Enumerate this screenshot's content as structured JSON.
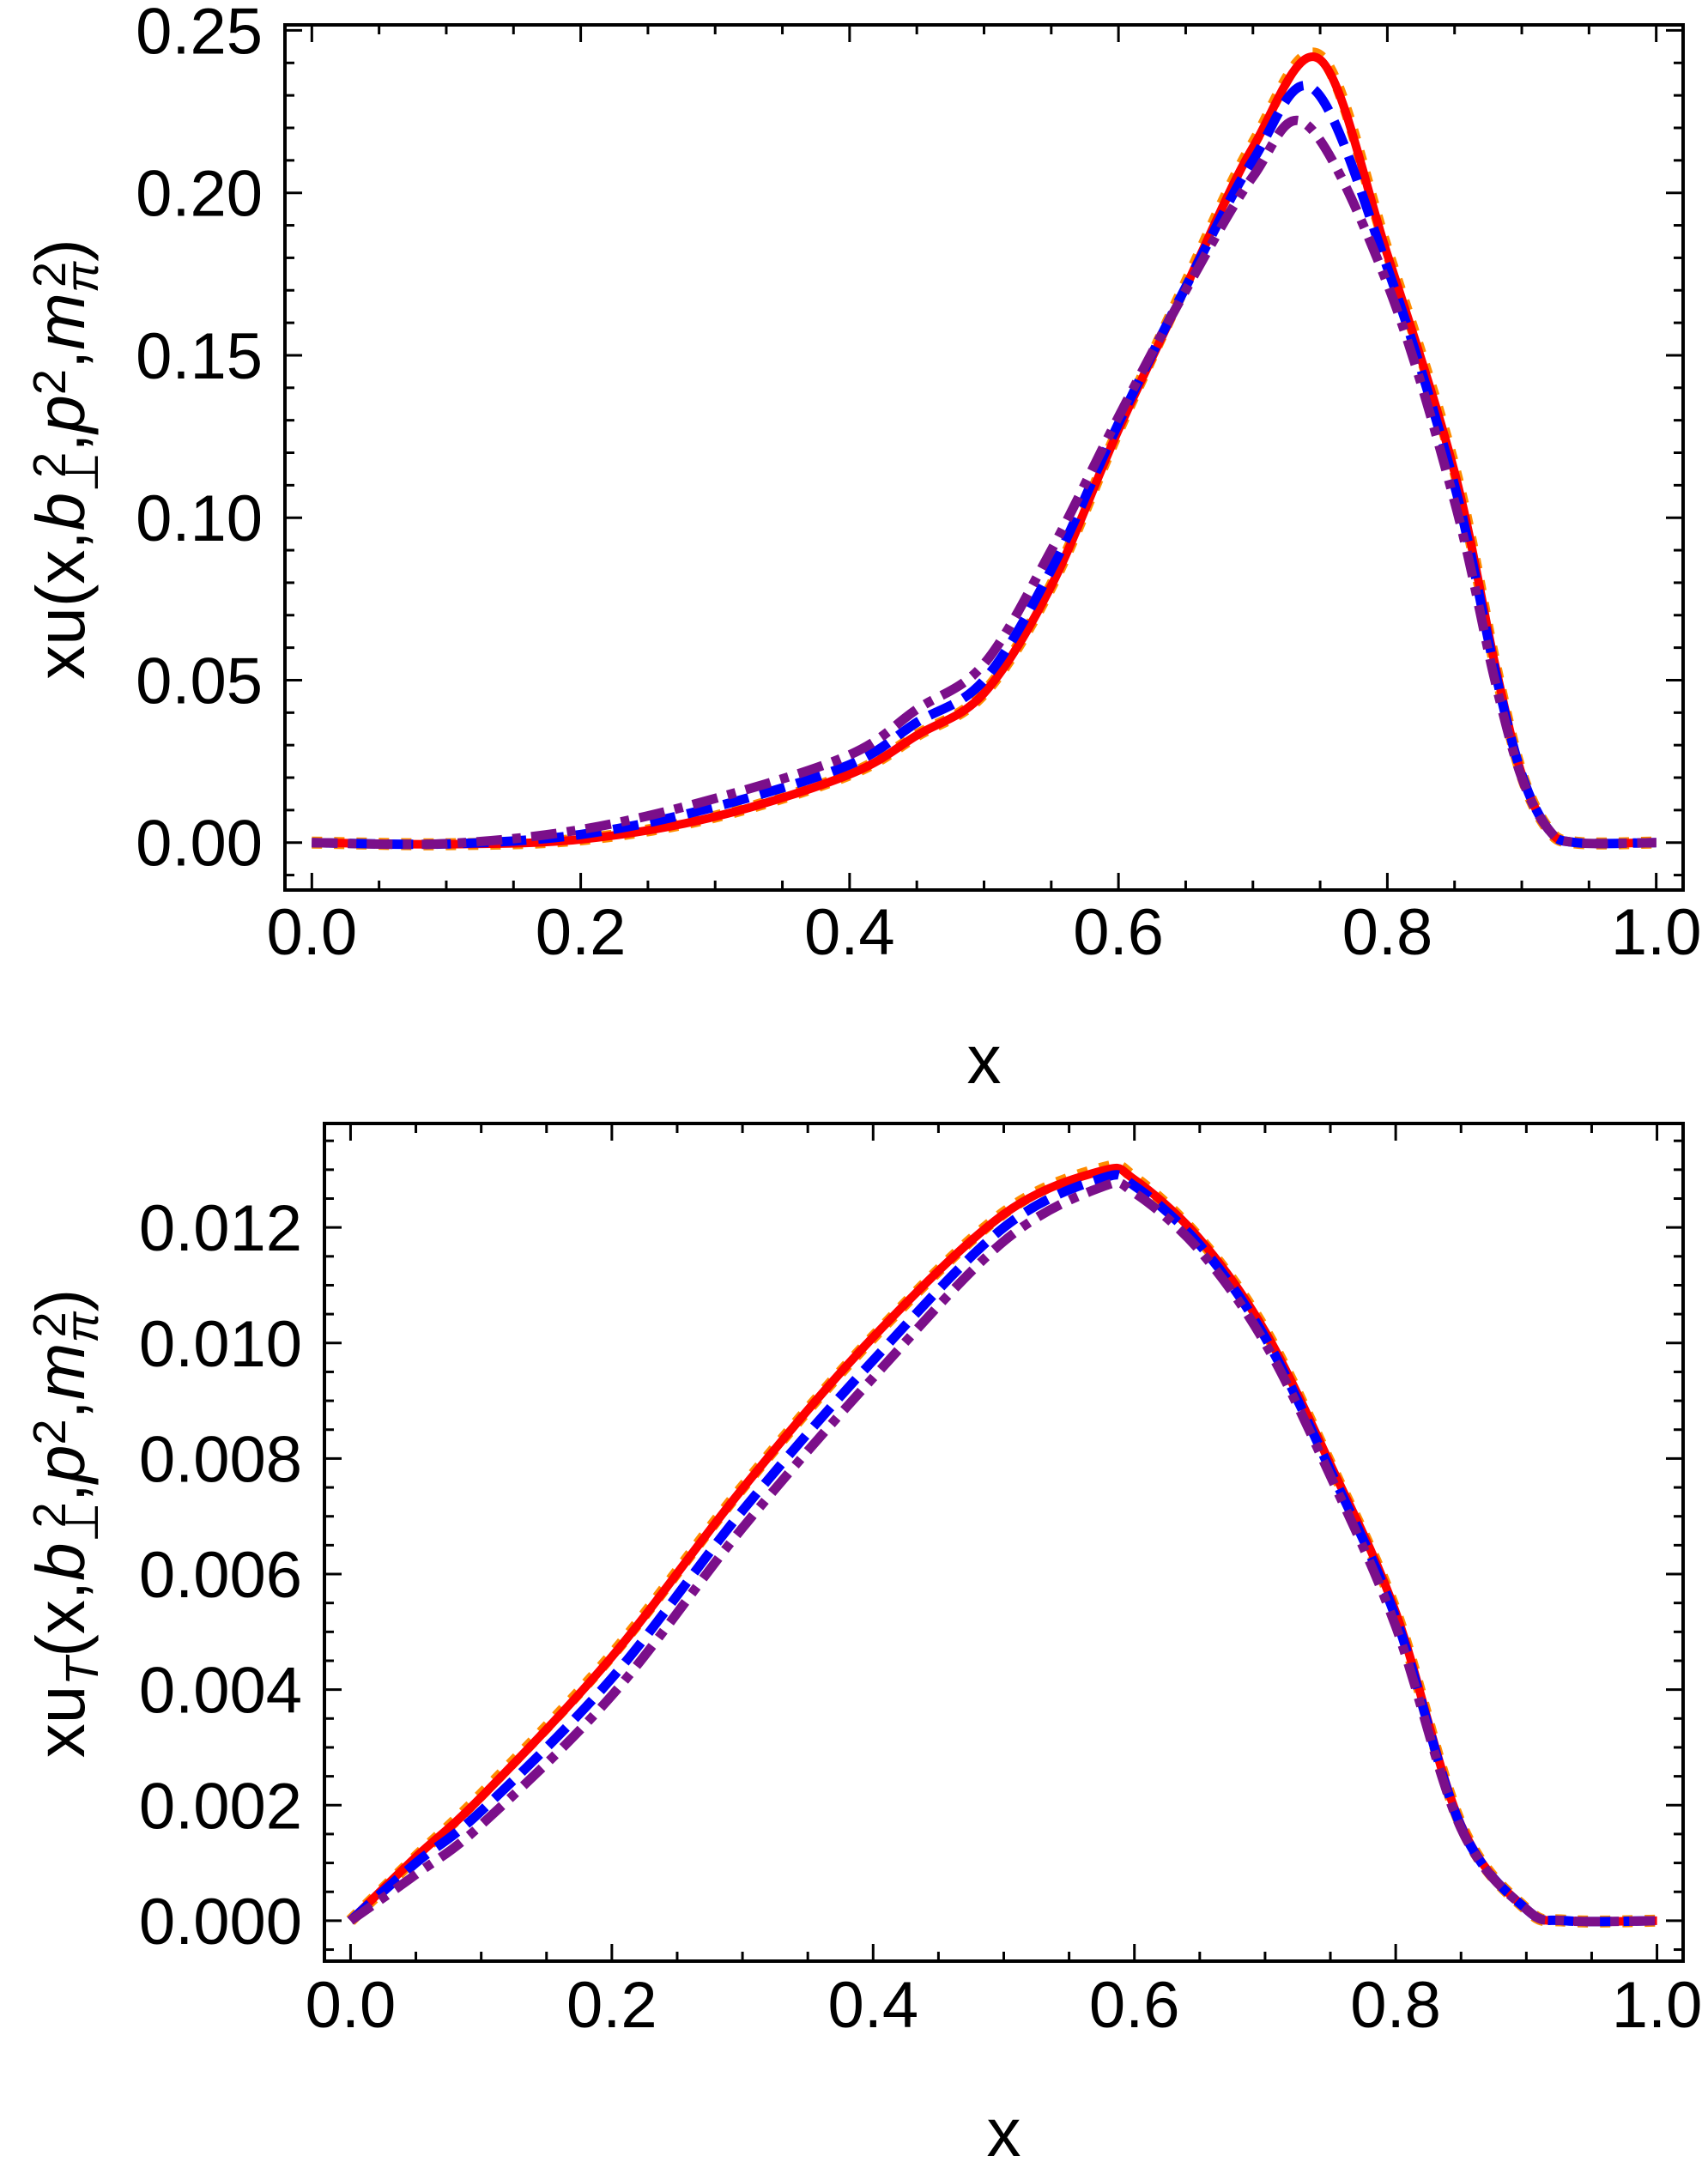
{
  "chart_data": [
    {
      "type": "line",
      "xlabel": "x",
      "ylabel_parts": [
        {
          "t": "xu(x,"
        },
        {
          "t": "b",
          "i": true
        },
        {
          "t": "⊥",
          "sub": true,
          "sup2": "2"
        },
        {
          "t": ","
        },
        {
          "t": "p",
          "i": true
        },
        {
          "t": "2",
          "sup": true
        },
        {
          "t": ","
        },
        {
          "t": "m",
          "i": true
        },
        {
          "t": "π",
          "sub": true,
          "i": true,
          "sup2": "2"
        },
        {
          "t": ")"
        }
      ],
      "xlim": [
        -0.02,
        1.02
      ],
      "ylim": [
        -0.0146,
        0.2517
      ],
      "xticks": [
        0.0,
        0.2,
        0.4,
        0.6,
        0.8,
        1.0
      ],
      "xtick_labels": [
        "0.0",
        "0.2",
        "0.4",
        "0.6",
        "0.8",
        "1.0"
      ],
      "yticks": [
        0.0,
        0.05,
        0.1,
        0.15,
        0.2,
        0.25
      ],
      "ytick_labels": [
        "0.00",
        "0.05",
        "0.10",
        "0.15",
        "0.20",
        "0.25"
      ],
      "x_minor_step": 0.05,
      "y_minor_step": 0.01,
      "grid": false,
      "series": [
        {
          "color": "#FF8C00",
          "style": "dashed-thin",
          "x": [
            0,
            0.1,
            0.2,
            0.3,
            0.4,
            0.45,
            0.5,
            0.55,
            0.6,
            0.65,
            0.7,
            0.75,
            0.8,
            0.85,
            0.88,
            0.9,
            0.92,
            0.94,
            1.0
          ],
          "y": [
            0,
            -0.0005,
            0.001,
            0.008,
            0.021,
            0.033,
            0.046,
            0.079,
            0.127,
            0.172,
            0.215,
            0.242,
            0.182,
            0.115,
            0.055,
            0.021,
            0.004,
            0,
            0
          ]
        },
        {
          "color": "#FF0000",
          "style": "solid",
          "x": [
            0,
            0.1,
            0.2,
            0.3,
            0.4,
            0.45,
            0.5,
            0.55,
            0.6,
            0.65,
            0.7,
            0.75,
            0.8,
            0.85,
            0.88,
            0.9,
            0.92,
            0.94,
            1.0
          ],
          "y": [
            0,
            -0.0005,
            0.001,
            0.008,
            0.021,
            0.033,
            0.046,
            0.079,
            0.127,
            0.171,
            0.214,
            0.241,
            0.181,
            0.114,
            0.055,
            0.021,
            0.004,
            0,
            0
          ]
        },
        {
          "color": "#0000FF",
          "style": "dashed",
          "x": [
            0,
            0.1,
            0.2,
            0.3,
            0.4,
            0.45,
            0.5,
            0.55,
            0.6,
            0.65,
            0.7,
            0.745,
            0.8,
            0.85,
            0.88,
            0.9,
            0.92,
            0.94,
            1.0
          ],
          "y": [
            0,
            -0.0004,
            0.0025,
            0.011,
            0.024,
            0.037,
            0.05,
            0.084,
            0.129,
            0.171,
            0.21,
            0.232,
            0.177,
            0.11,
            0.053,
            0.021,
            0.004,
            0,
            0
          ]
        },
        {
          "color": "#7B0F8A",
          "style": "dot-dash",
          "x": [
            0,
            0.1,
            0.2,
            0.3,
            0.4,
            0.45,
            0.5,
            0.55,
            0.6,
            0.65,
            0.7,
            0.74,
            0.8,
            0.85,
            0.88,
            0.9,
            0.92,
            0.94,
            1.0
          ],
          "y": [
            0,
            -0.0003,
            0.004,
            0.0136,
            0.027,
            0.041,
            0.055,
            0.09,
            0.131,
            0.17,
            0.205,
            0.221,
            0.172,
            0.105,
            0.05,
            0.02,
            0.004,
            0,
            0
          ]
        }
      ]
    },
    {
      "type": "line",
      "xlabel": "x",
      "ylabel_parts": [
        {
          "t": "xu"
        },
        {
          "t": "T",
          "sub": true,
          "i": true
        },
        {
          "t": "(x,"
        },
        {
          "t": "b",
          "i": true
        },
        {
          "t": "⊥",
          "sub": true,
          "sup2": "2"
        },
        {
          "t": ","
        },
        {
          "t": "p",
          "i": true
        },
        {
          "t": "2",
          "sup": true
        },
        {
          "t": ","
        },
        {
          "t": "m",
          "i": true
        },
        {
          "t": "π",
          "sub": true,
          "i": true,
          "sup2": "2"
        },
        {
          "t": ")"
        }
      ],
      "xlim": [
        -0.02,
        1.02
      ],
      "ylim": [
        -0.0007,
        0.0138
      ],
      "xticks": [
        0.0,
        0.2,
        0.4,
        0.6,
        0.8,
        1.0
      ],
      "xtick_labels": [
        "0.0",
        "0.2",
        "0.4",
        "0.6",
        "0.8",
        "1.0"
      ],
      "yticks": [
        0.0,
        0.002,
        0.004,
        0.006,
        0.008,
        0.01,
        0.012
      ],
      "ytick_labels": [
        "0.000",
        "0.002",
        "0.004",
        "0.006",
        "0.008",
        "0.010",
        "0.012"
      ],
      "x_minor_step": 0.05,
      "y_minor_step": 0.0005,
      "grid": false,
      "series": [
        {
          "color": "#FF8C00",
          "style": "dashed-thin",
          "x": [
            0,
            0.05,
            0.1,
            0.2,
            0.3,
            0.4,
            0.5,
            0.575,
            0.6,
            0.65,
            0.7,
            0.75,
            0.8,
            0.85,
            0.9,
            0.93,
            1.0
          ],
          "y": [
            0,
            0.0011,
            0.00218,
            0.0046,
            0.0075,
            0.0101,
            0.01225,
            0.01302,
            0.01286,
            0.0118,
            0.01022,
            0.0079,
            0.00535,
            0.00166,
            0.0002,
            0,
            0
          ]
        },
        {
          "color": "#FF0000",
          "style": "solid",
          "x": [
            0,
            0.05,
            0.1,
            0.2,
            0.3,
            0.4,
            0.5,
            0.575,
            0.6,
            0.65,
            0.7,
            0.75,
            0.8,
            0.85,
            0.9,
            0.93,
            1.0
          ],
          "y": [
            0,
            0.0011,
            0.00214,
            0.00457,
            0.00748,
            0.0101,
            0.01223,
            0.01298,
            0.01283,
            0.0118,
            0.0102,
            0.0079,
            0.00534,
            0.00166,
            0.0002,
            0,
            0
          ]
        },
        {
          "color": "#0000FF",
          "style": "dashed",
          "x": [
            0,
            0.05,
            0.1,
            0.2,
            0.3,
            0.4,
            0.5,
            0.575,
            0.6,
            0.65,
            0.7,
            0.75,
            0.8,
            0.85,
            0.9,
            0.93,
            1.0
          ],
          "y": [
            0,
            0.001,
            0.0019,
            0.0042,
            0.0071,
            0.0097,
            0.012,
            0.01285,
            0.01272,
            0.0117,
            0.0101,
            0.0078,
            0.00525,
            0.00163,
            0.0002,
            0,
            0
          ]
        },
        {
          "color": "#7B0F8A",
          "style": "dot-dash",
          "x": [
            0,
            0.05,
            0.1,
            0.2,
            0.3,
            0.4,
            0.5,
            0.575,
            0.6,
            0.65,
            0.7,
            0.75,
            0.8,
            0.85,
            0.9,
            0.93,
            1.0
          ],
          "y": [
            0,
            0.0008,
            0.00166,
            0.0039,
            0.0068,
            0.0094,
            0.01176,
            0.0127,
            0.0126,
            0.0116,
            0.01,
            0.0077,
            0.0051,
            0.0016,
            0.0002,
            0,
            0
          ]
        }
      ]
    }
  ]
}
